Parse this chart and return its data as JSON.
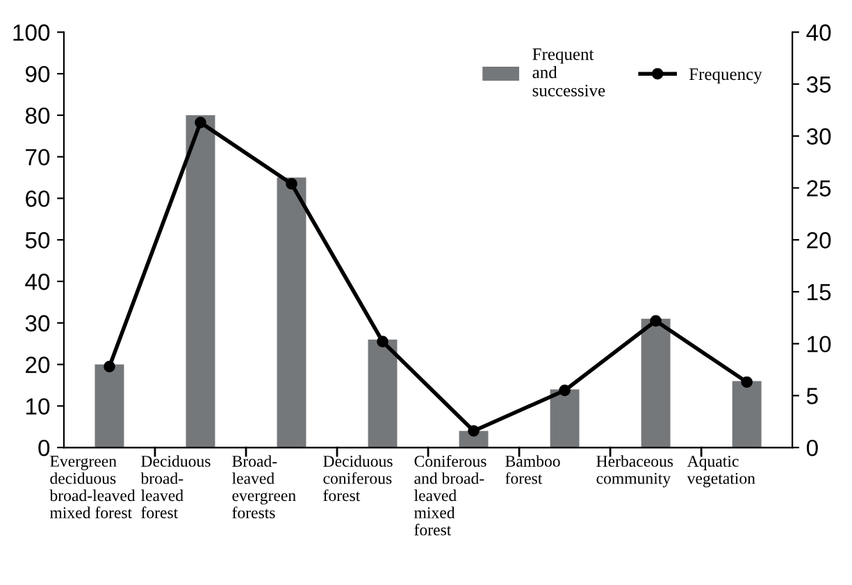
{
  "chart_data": {
    "type": "bar",
    "categories": [
      "Evergreen\ndeciduous\nbroad-leaved\nmixed forest",
      "Deciduous\nbroad-\nleaved\nforest",
      "Broad-\nleaved\nevergreen\nforests",
      "Deciduous\nconiferous\nforest",
      "Coniferous\nand broad-\nleaved\nmixed\nforest",
      "Bamboo\nforest",
      "Herbaceous\ncommunity",
      "Aquatic\nvegetation"
    ],
    "series": [
      {
        "name": "Frequent\nand\nsuccessive",
        "color": "#75787b",
        "values": [
          20,
          80,
          65,
          26,
          4,
          14,
          31,
          16
        ]
      },
      {
        "name": "Frequency",
        "type": "line",
        "axis": "y2",
        "color": "#000000",
        "marker": "circle",
        "values": [
          7.8,
          31.3,
          25.4,
          10.2,
          1.6,
          5.5,
          12.2,
          6.3
        ]
      }
    ],
    "ylim": [
      0,
      100
    ],
    "yticks": [
      0,
      10,
      20,
      30,
      40,
      50,
      60,
      70,
      80,
      90,
      100
    ],
    "y2lim": [
      0,
      40
    ],
    "y2ticks": [
      0,
      5,
      10,
      15,
      20,
      25,
      30,
      35,
      40
    ],
    "legend": "top right",
    "grid": false
  }
}
